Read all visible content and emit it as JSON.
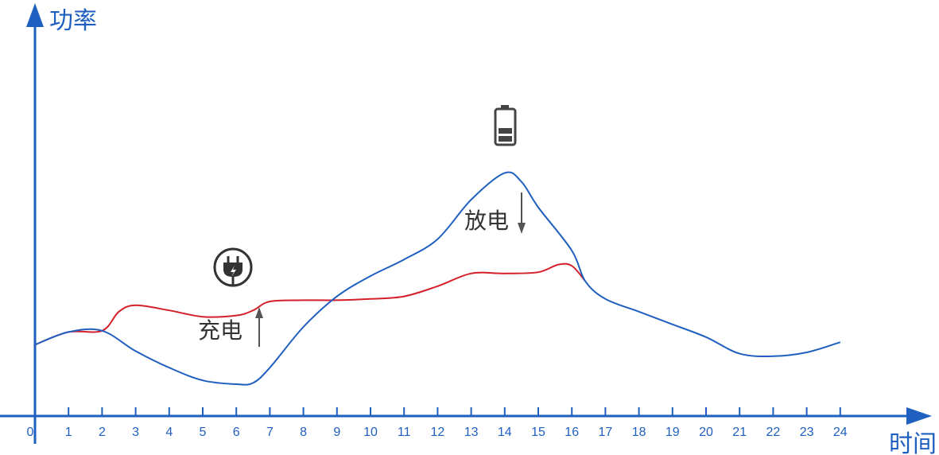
{
  "chart_data": {
    "type": "line",
    "x_axis": {
      "label": "时间",
      "range": [
        0,
        24
      ],
      "ticks": [
        "0",
        "1",
        "2",
        "3",
        "4",
        "5",
        "6",
        "7",
        "8",
        "9",
        "10",
        "11",
        "12",
        "13",
        "14",
        "15",
        "16",
        "17",
        "18",
        "19",
        "20",
        "21",
        "22",
        "23",
        "24"
      ]
    },
    "y_axis": {
      "label": "功率",
      "ticks_shown": false
    },
    "grid": false,
    "series": [
      {
        "color": "#d3202a",
        "points": [
          [
            0,
            2.8
          ],
          [
            1,
            3.3
          ],
          [
            2,
            3.35
          ],
          [
            2.5,
            4.1
          ],
          [
            3,
            4.35
          ],
          [
            4,
            4.15
          ],
          [
            5,
            3.9
          ],
          [
            6,
            3.95
          ],
          [
            6.5,
            4.15
          ],
          [
            7,
            4.5
          ],
          [
            8,
            4.55
          ],
          [
            9,
            4.55
          ],
          [
            10,
            4.6
          ],
          [
            11,
            4.7
          ],
          [
            12,
            5.1
          ],
          [
            13,
            5.6
          ],
          [
            14,
            5.6
          ],
          [
            15,
            5.65
          ],
          [
            15.6,
            5.95
          ],
          [
            16,
            5.9
          ],
          [
            16.4,
            5.3
          ]
        ]
      },
      {
        "color": "#1f5fbf",
        "points": [
          [
            0,
            2.8
          ],
          [
            1,
            3.3
          ],
          [
            2,
            3.35
          ],
          [
            3,
            2.55
          ],
          [
            4,
            1.9
          ],
          [
            5,
            1.4
          ],
          [
            6,
            1.25
          ],
          [
            6.5,
            1.3
          ],
          [
            7,
            1.9
          ],
          [
            8,
            3.5
          ],
          [
            9,
            4.7
          ],
          [
            10,
            5.5
          ],
          [
            11,
            6.15
          ],
          [
            12,
            6.95
          ],
          [
            13,
            8.5
          ],
          [
            14,
            9.55
          ],
          [
            14.5,
            9.2
          ],
          [
            15,
            8.2
          ],
          [
            16,
            6.5
          ],
          [
            16.4,
            5.3
          ],
          [
            17,
            4.6
          ],
          [
            18,
            4.1
          ],
          [
            19,
            3.6
          ],
          [
            20,
            3.1
          ],
          [
            21,
            2.45
          ],
          [
            22,
            2.35
          ],
          [
            23,
            2.5
          ],
          [
            24,
            2.9
          ]
        ]
      }
    ],
    "annotations": [
      {
        "text": "充电",
        "x": 6.2,
        "direction": "up"
      },
      {
        "text": "放电",
        "x": 14.3,
        "direction": "down"
      }
    ],
    "icons": [
      {
        "name": "plug-icon",
        "near_x": 5.9
      },
      {
        "name": "battery-icon",
        "near_x": 14.0
      }
    ],
    "colors": {
      "axis": "#1f5fbf",
      "charge_line": "#d3202a",
      "discharge_line": "#1f5fbf",
      "arrow": "#555555"
    }
  }
}
